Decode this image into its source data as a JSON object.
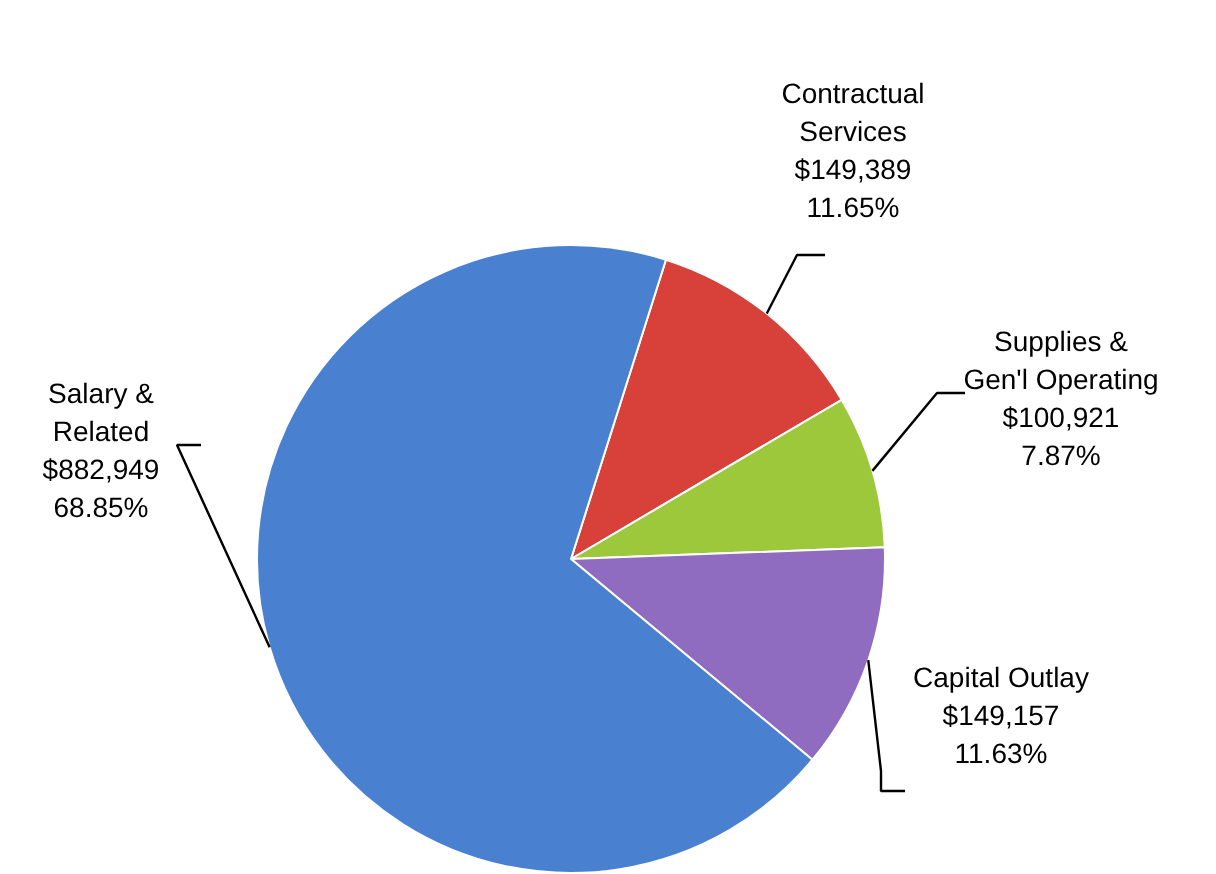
{
  "chart_data": {
    "type": "pie",
    "categories": [
      "Contractual\nServices",
      "Supplies &\nGen'l Operating",
      "Capital Outlay",
      "Salary &\nRelated"
    ],
    "values": [
      149389,
      100921,
      149157,
      882949
    ],
    "value_labels": [
      "$149,389\n11.65%",
      "$100,921\n7.87%",
      "$149,157\n11.63%",
      "$882,949\n68.85%"
    ],
    "colors": [
      "#d8403a",
      "#9dc83c",
      "#8f6cc0",
      "#4a80d0"
    ]
  }
}
